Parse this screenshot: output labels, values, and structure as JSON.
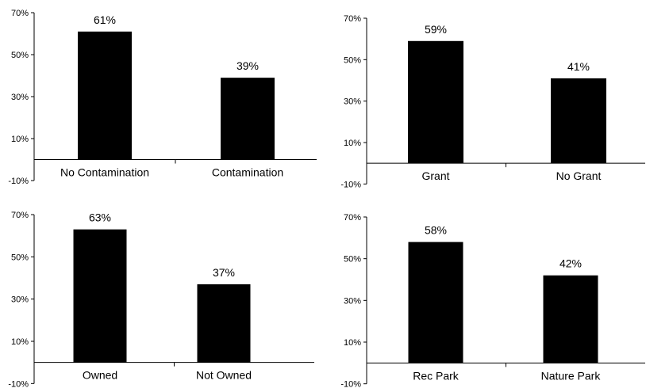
{
  "chart_data": [
    {
      "type": "bar",
      "title": "",
      "xlabel": "",
      "ylabel": "",
      "categories": [
        "No Contamination",
        "Contamination"
      ],
      "values": [
        61,
        39
      ],
      "data_labels": [
        "61%",
        "39%"
      ],
      "ylim": [
        -10,
        70
      ],
      "yticks": [
        -10,
        10,
        30,
        50,
        70
      ],
      "ytick_labels": [
        "-10%",
        "10%",
        "30%",
        "50%",
        "70%"
      ],
      "bar_color": "#000000",
      "grid": false,
      "legend": "none"
    },
    {
      "type": "bar",
      "title": "",
      "xlabel": "",
      "ylabel": "",
      "categories": [
        "Grant",
        "No Grant"
      ],
      "values": [
        59,
        41
      ],
      "data_labels": [
        "59%",
        "41%"
      ],
      "ylim": [
        -10,
        70
      ],
      "yticks": [
        -10,
        10,
        30,
        50,
        70
      ],
      "ytick_labels": [
        "-10%",
        "10%",
        "30%",
        "50%",
        "70%"
      ],
      "bar_color": "#000000",
      "grid": false,
      "legend": "none"
    },
    {
      "type": "bar",
      "title": "",
      "xlabel": "",
      "ylabel": "",
      "categories": [
        "Owned",
        "Not Owned"
      ],
      "values": [
        63,
        37
      ],
      "data_labels": [
        "63%",
        "37%"
      ],
      "ylim": [
        -10,
        70
      ],
      "yticks": [
        -10,
        10,
        30,
        50,
        70
      ],
      "ytick_labels": [
        "-10%",
        "10%",
        "30%",
        "50%",
        "70%"
      ],
      "bar_color": "#000000",
      "grid": false,
      "legend": "none"
    },
    {
      "type": "bar",
      "title": "",
      "xlabel": "",
      "ylabel": "",
      "categories": [
        "Rec Park",
        "Nature Park"
      ],
      "values": [
        58,
        42
      ],
      "data_labels": [
        "58%",
        "42%"
      ],
      "ylim": [
        -10,
        70
      ],
      "yticks": [
        -10,
        10,
        30,
        50,
        70
      ],
      "ytick_labels": [
        "-10%",
        "10%",
        "30%",
        "50%",
        "70%"
      ],
      "bar_color": "#000000",
      "grid": false,
      "legend": "none"
    }
  ]
}
